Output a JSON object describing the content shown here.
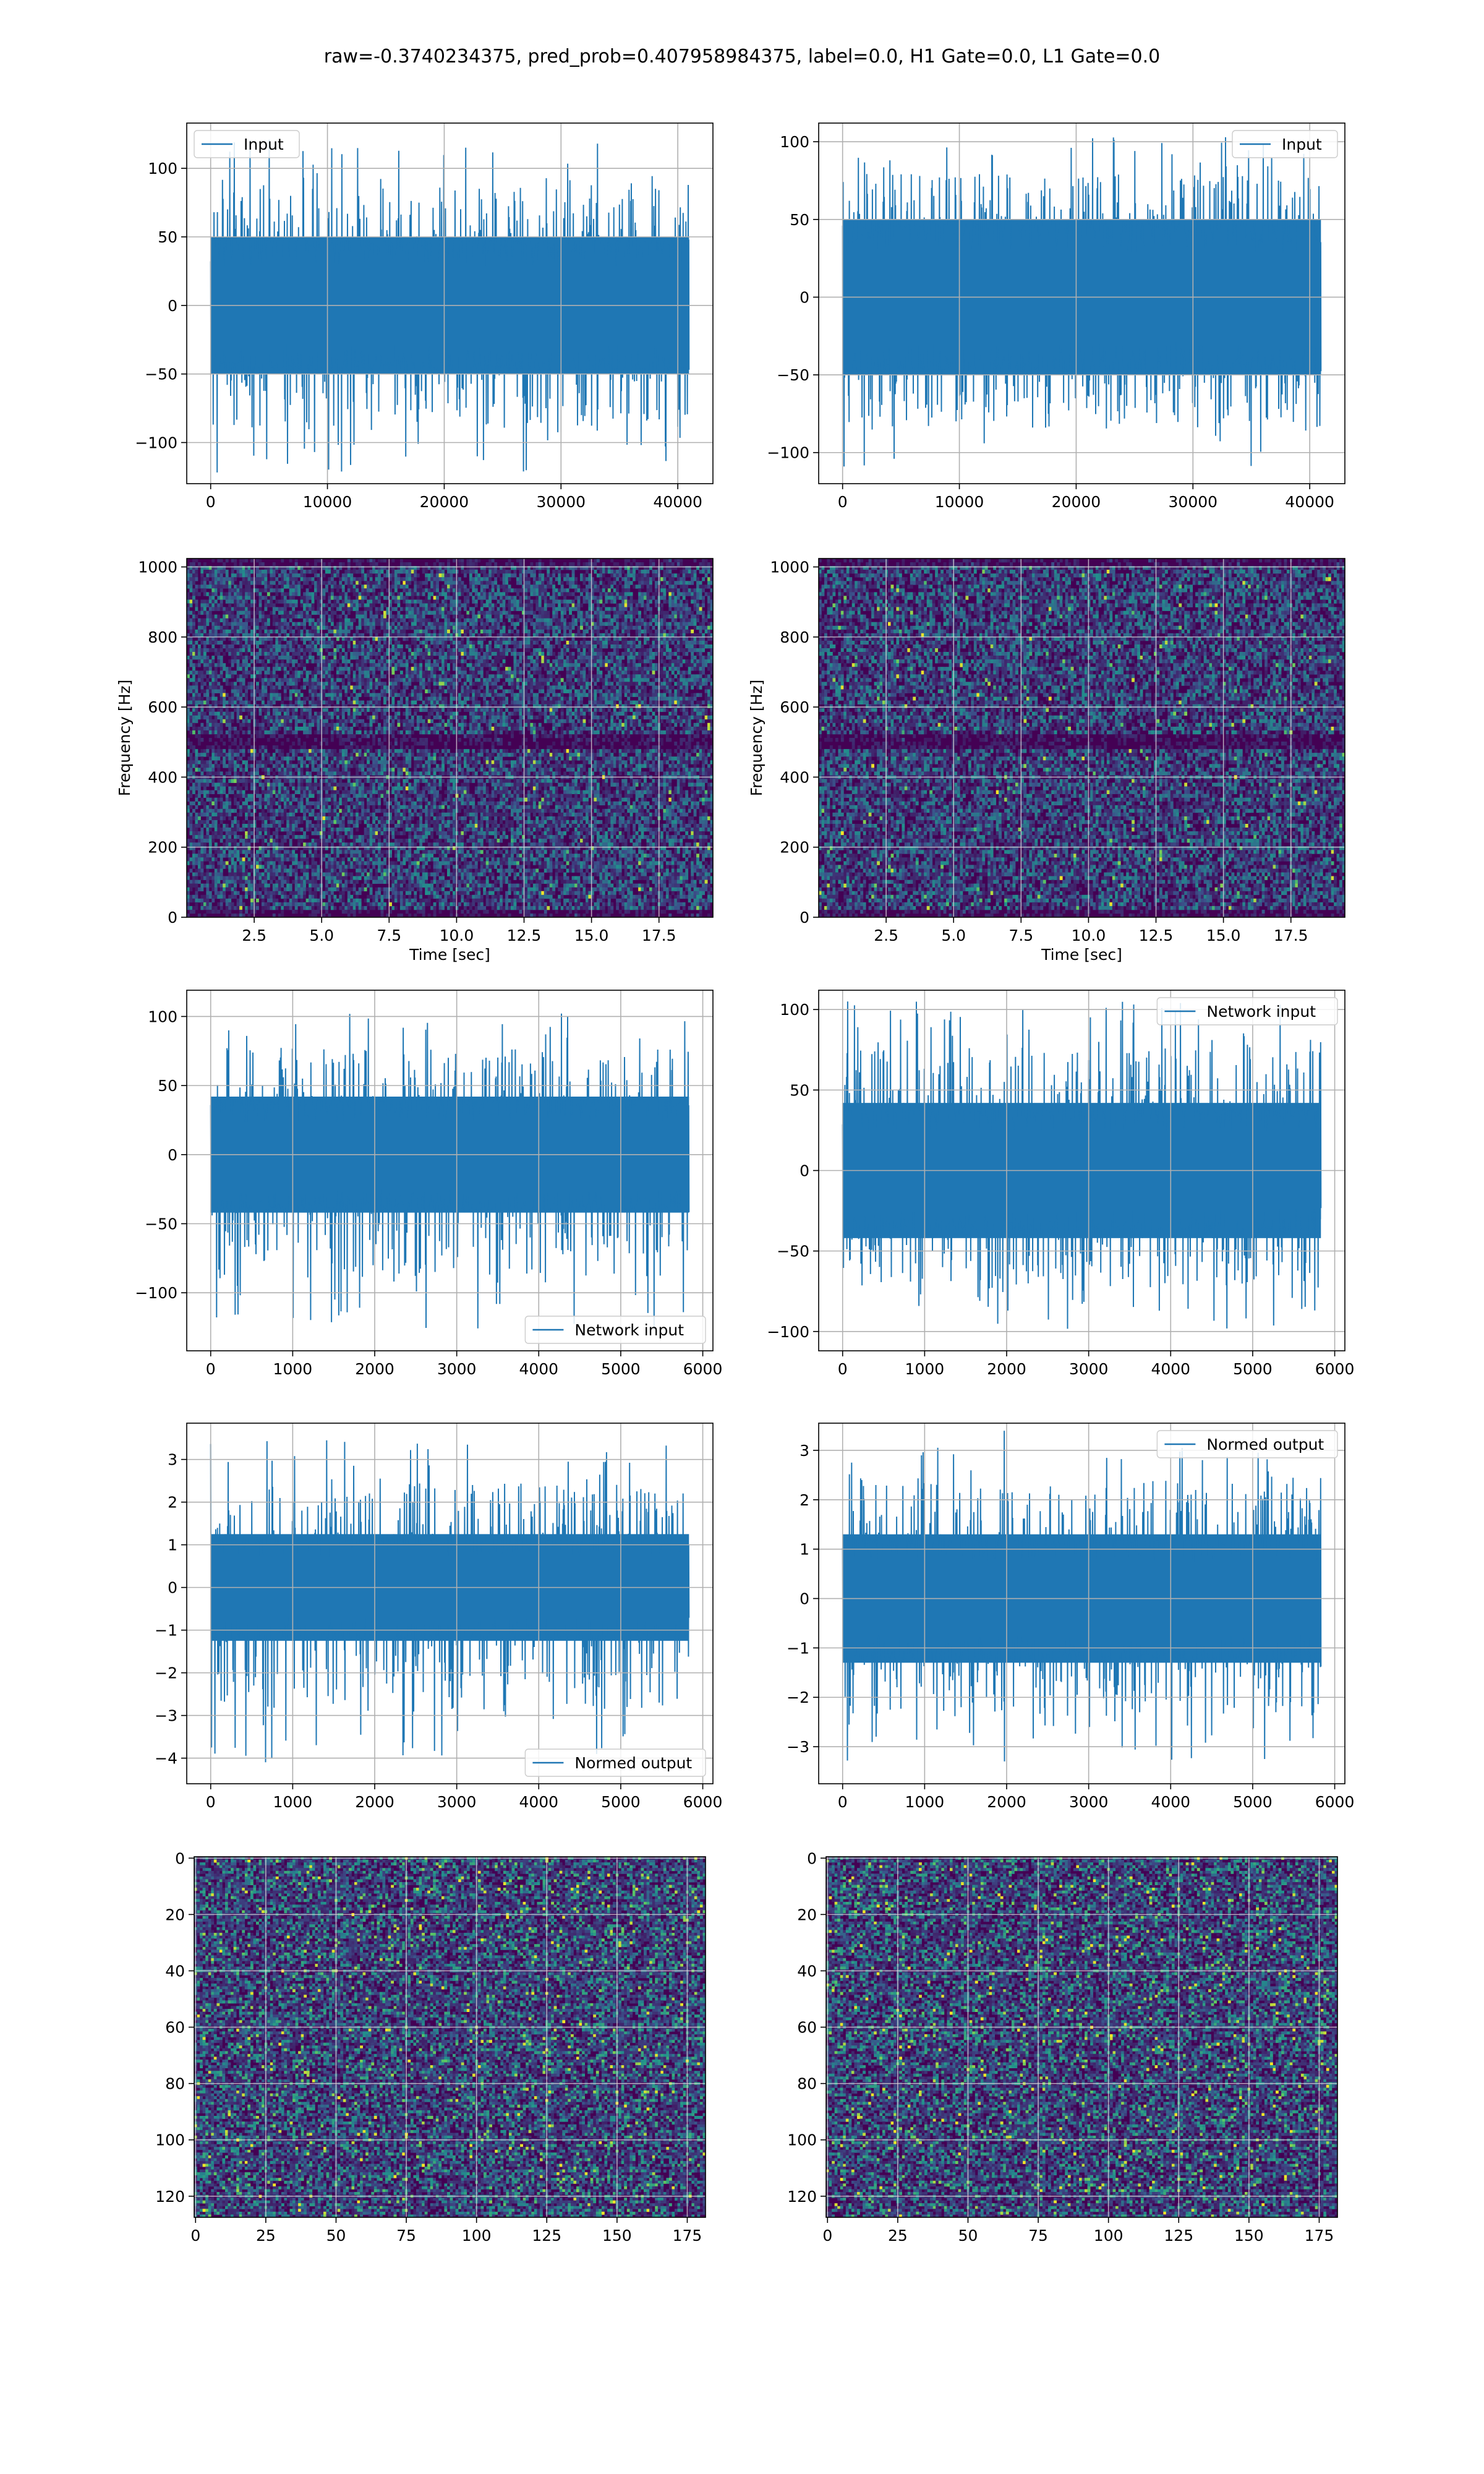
{
  "figure": {
    "suptitle": "raw=-0.3740234375, pred_prob=0.407958984375, label=0.0, H1 Gate=0.0, L1 Gate=0.0",
    "colors": {
      "line": "#1f77b4",
      "grid": "#b0b0b0",
      "spine": "#000000",
      "heat_low": "#440154",
      "heat_mid": "#31688e",
      "heat_hi": "#35b779",
      "heat_peak": "#fde725"
    }
  },
  "chart_data": [
    {
      "id": "input-left",
      "type": "line",
      "series": [
        {
          "name": "Input",
          "x_range": [
            0,
            40960
          ],
          "y_band": [
            -50,
            50
          ],
          "y_extremes": [
            -122,
            121
          ]
        }
      ],
      "xlim": [
        -2048,
        43008
      ],
      "ylim": [
        -130,
        133
      ],
      "xticks": [
        0,
        10000,
        20000,
        30000,
        40000
      ],
      "xtick_labels": [
        "0",
        "10000",
        "20000",
        "30000",
        "40000"
      ],
      "yticks": [
        -100,
        -50,
        0,
        50,
        100
      ],
      "ytick_labels": [
        "−100",
        "−50",
        "0",
        "50",
        "100"
      ],
      "xlabel": "",
      "ylabel": "",
      "legend": "top-left",
      "grid": true
    },
    {
      "id": "input-right",
      "type": "line",
      "series": [
        {
          "name": "Input",
          "x_range": [
            0,
            40960
          ],
          "y_band": [
            -50,
            50
          ],
          "y_extremes": [
            -113,
            104
          ]
        }
      ],
      "xlim": [
        -2048,
        43008
      ],
      "ylim": [
        -120,
        112
      ],
      "xticks": [
        0,
        10000,
        20000,
        30000,
        40000
      ],
      "xtick_labels": [
        "0",
        "10000",
        "20000",
        "30000",
        "40000"
      ],
      "yticks": [
        -100,
        -50,
        0,
        50,
        100
      ],
      "ytick_labels": [
        "−100",
        "−50",
        "0",
        "50",
        "100"
      ],
      "xlabel": "",
      "ylabel": "",
      "legend": "top-right",
      "grid": true
    },
    {
      "id": "spectrogram-left",
      "type": "heatmap",
      "xlim": [
        0,
        19.5
      ],
      "ylim": [
        0,
        1024
      ],
      "xticks": [
        2.5,
        5.0,
        7.5,
        10.0,
        12.5,
        15.0,
        17.5
      ],
      "xtick_labels": [
        "2.5",
        "5.0",
        "7.5",
        "10.0",
        "12.5",
        "15.0",
        "17.5"
      ],
      "yticks": [
        0,
        200,
        400,
        600,
        800,
        1000
      ],
      "ytick_labels": [
        "0",
        "200",
        "400",
        "600",
        "800",
        "1000"
      ],
      "xlabel": "Time [sec]",
      "ylabel": "Frequency [Hz]",
      "dark_band_at_y": 500,
      "colormap": "viridis",
      "grid": true
    },
    {
      "id": "spectrogram-right",
      "type": "heatmap",
      "xlim": [
        0,
        19.5
      ],
      "ylim": [
        0,
        1024
      ],
      "xticks": [
        2.5,
        5.0,
        7.5,
        10.0,
        12.5,
        15.0,
        17.5
      ],
      "xtick_labels": [
        "2.5",
        "5.0",
        "7.5",
        "10.0",
        "12.5",
        "15.0",
        "17.5"
      ],
      "yticks": [
        0,
        200,
        400,
        600,
        800,
        1000
      ],
      "ytick_labels": [
        "0",
        "200",
        "400",
        "600",
        "800",
        "1000"
      ],
      "xlabel": "Time [sec]",
      "ylabel": "Frequency [Hz]",
      "dark_band_at_y": 500,
      "colormap": "viridis",
      "grid": true
    },
    {
      "id": "network-left",
      "type": "line",
      "series": [
        {
          "name": "Network input",
          "x_range": [
            0,
            5832
          ],
          "y_band": [
            -42,
            42
          ],
          "y_extremes": [
            -130,
            107
          ]
        }
      ],
      "xlim": [
        -292,
        6124
      ],
      "ylim": [
        -142,
        119
      ],
      "xticks": [
        0,
        1000,
        2000,
        3000,
        4000,
        5000,
        6000
      ],
      "xtick_labels": [
        "0",
        "1000",
        "2000",
        "3000",
        "4000",
        "5000",
        "6000"
      ],
      "yticks": [
        -100,
        -50,
        0,
        50,
        100
      ],
      "ytick_labels": [
        "−100",
        "−50",
        "0",
        "50",
        "100"
      ],
      "xlabel": "",
      "ylabel": "",
      "legend": "bottom-right",
      "grid": true
    },
    {
      "id": "network-right",
      "type": "line",
      "series": [
        {
          "name": "Network input",
          "x_range": [
            0,
            5832
          ],
          "y_band": [
            -42,
            42
          ],
          "y_extremes": [
            -100,
            105
          ]
        }
      ],
      "xlim": [
        -292,
        6124
      ],
      "ylim": [
        -112,
        112
      ],
      "xticks": [
        0,
        1000,
        2000,
        3000,
        4000,
        5000,
        6000
      ],
      "xtick_labels": [
        "0",
        "1000",
        "2000",
        "3000",
        "4000",
        "5000",
        "6000"
      ],
      "yticks": [
        -100,
        -50,
        0,
        50,
        100
      ],
      "ytick_labels": [
        "−100",
        "−50",
        "0",
        "50",
        "100"
      ],
      "xlabel": "",
      "ylabel": "",
      "legend": "top-right",
      "grid": true
    },
    {
      "id": "normed-left",
      "type": "line",
      "series": [
        {
          "name": "Normed output",
          "x_range": [
            0,
            5832
          ],
          "y_band": [
            -1.25,
            1.25
          ],
          "y_extremes": [
            -4.2,
            3.45
          ]
        }
      ],
      "xlim": [
        -292,
        6124
      ],
      "ylim": [
        -4.6,
        3.85
      ],
      "xticks": [
        0,
        1000,
        2000,
        3000,
        4000,
        5000,
        6000
      ],
      "xtick_labels": [
        "0",
        "1000",
        "2000",
        "3000",
        "4000",
        "5000",
        "6000"
      ],
      "yticks": [
        -4,
        -3,
        -2,
        -1,
        0,
        1,
        2,
        3
      ],
      "ytick_labels": [
        "−4",
        "−3",
        "−2",
        "−1",
        "0",
        "1",
        "2",
        "3"
      ],
      "xlabel": "",
      "ylabel": "",
      "legend": "bottom-right",
      "grid": true
    },
    {
      "id": "normed-right",
      "type": "line",
      "series": [
        {
          "name": "Normed output",
          "x_range": [
            0,
            5832
          ],
          "y_band": [
            -1.3,
            1.3
          ],
          "y_extremes": [
            -3.3,
            3.4
          ]
        }
      ],
      "xlim": [
        -292,
        6124
      ],
      "ylim": [
        -3.75,
        3.55
      ],
      "xticks": [
        0,
        1000,
        2000,
        3000,
        4000,
        5000,
        6000
      ],
      "xtick_labels": [
        "0",
        "1000",
        "2000",
        "3000",
        "4000",
        "5000",
        "6000"
      ],
      "yticks": [
        -3,
        -2,
        -1,
        0,
        1,
        2,
        3
      ],
      "ytick_labels": [
        "−3",
        "−2",
        "−1",
        "0",
        "1",
        "2",
        "3"
      ],
      "xlabel": "",
      "ylabel": "",
      "legend": "top-right",
      "grid": true
    },
    {
      "id": "image-left",
      "type": "heatmap",
      "xlim": [
        -0.5,
        181.5
      ],
      "ylim": [
        127.5,
        -0.5
      ],
      "xticks": [
        0,
        25,
        50,
        75,
        100,
        125,
        150,
        175
      ],
      "xtick_labels": [
        "0",
        "25",
        "50",
        "75",
        "100",
        "125",
        "150",
        "175"
      ],
      "yticks": [
        0,
        20,
        40,
        60,
        80,
        100,
        120
      ],
      "ytick_labels": [
        "0",
        "20",
        "40",
        "60",
        "80",
        "100",
        "120"
      ],
      "xlabel": "",
      "ylabel": "",
      "shape": [
        128,
        182
      ],
      "colormap": "viridis",
      "grid": true
    },
    {
      "id": "image-right",
      "type": "heatmap",
      "xlim": [
        -0.5,
        181.5
      ],
      "ylim": [
        127.5,
        -0.5
      ],
      "xticks": [
        0,
        25,
        50,
        75,
        100,
        125,
        150,
        175
      ],
      "xtick_labels": [
        "0",
        "25",
        "50",
        "75",
        "100",
        "125",
        "150",
        "175"
      ],
      "yticks": [
        0,
        20,
        40,
        60,
        80,
        100,
        120
      ],
      "ytick_labels": [
        "0",
        "20",
        "40",
        "60",
        "80",
        "100",
        "120"
      ],
      "xlabel": "",
      "ylabel": "",
      "shape": [
        128,
        182
      ],
      "colormap": "viridis",
      "grid": true
    }
  ]
}
